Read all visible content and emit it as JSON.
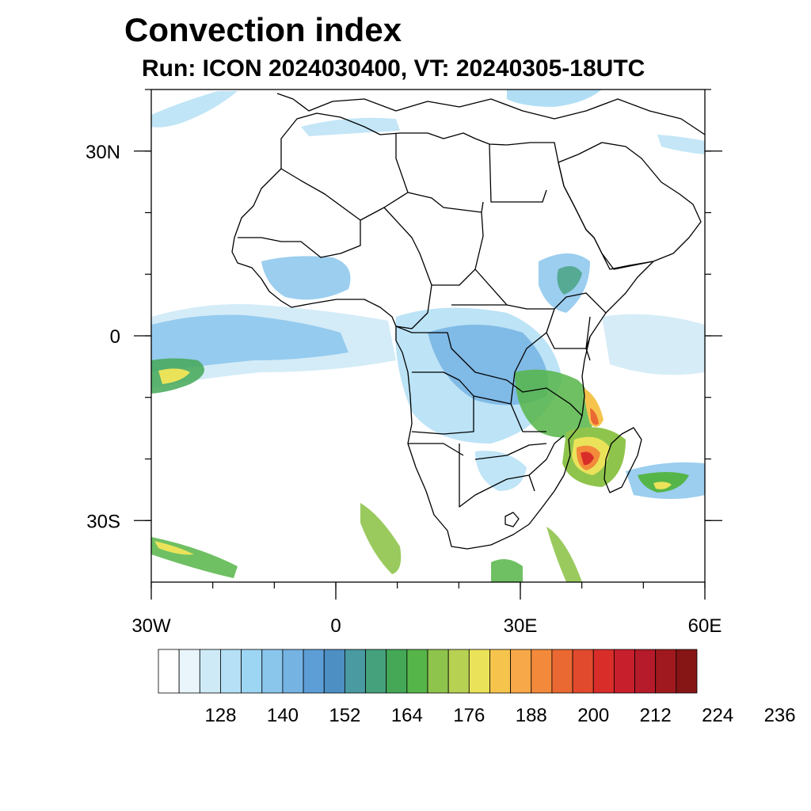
{
  "title": "Convection index",
  "subtitle": "Run: ICON 2024030400,  VT: 20240305-18UTC",
  "map": {
    "projection": "cylindrical equidistant",
    "lon_range": [
      -30,
      60
    ],
    "lat_range": [
      -40,
      40
    ],
    "lon_ticks": [
      {
        "value": -30,
        "label": "30W"
      },
      {
        "value": 0,
        "label": "0"
      },
      {
        "value": 30,
        "label": "30E"
      },
      {
        "value": 60,
        "label": "60E"
      }
    ],
    "lat_ticks": [
      {
        "value": 30,
        "label": "30N"
      },
      {
        "value": 0,
        "label": "0"
      },
      {
        "value": -30,
        "label": "30S"
      }
    ],
    "minor_lon_step": 10,
    "minor_lat_step": 10
  },
  "colorbar": {
    "levels": [
      128,
      140,
      152,
      164,
      176,
      188,
      200,
      212,
      224,
      236
    ],
    "level_step": 4,
    "colors": [
      "#ffffff",
      "#e9f5fb",
      "#cfeaf7",
      "#b5e0f5",
      "#9dd6f3",
      "#8ac6ec",
      "#75b3e3",
      "#5e9ed6",
      "#4d8fc2",
      "#4a9aa1",
      "#45a07c",
      "#44a857",
      "#56b548",
      "#8fc44c",
      "#b7d153",
      "#eae35a",
      "#f6c44d",
      "#f7a848",
      "#f38a3b",
      "#ea6932",
      "#e14a2c",
      "#d92d2a",
      "#c81f2c",
      "#b51b2a",
      "#a0191f",
      "#861516"
    ]
  },
  "features": {
    "highest_values": "Mozambique Channel cyclone near 20S 40E, values above 212",
    "moderate_values": "equatorial Atlantic ITCZ, Congo basin, East Africa, southwest Indian Ocean"
  }
}
